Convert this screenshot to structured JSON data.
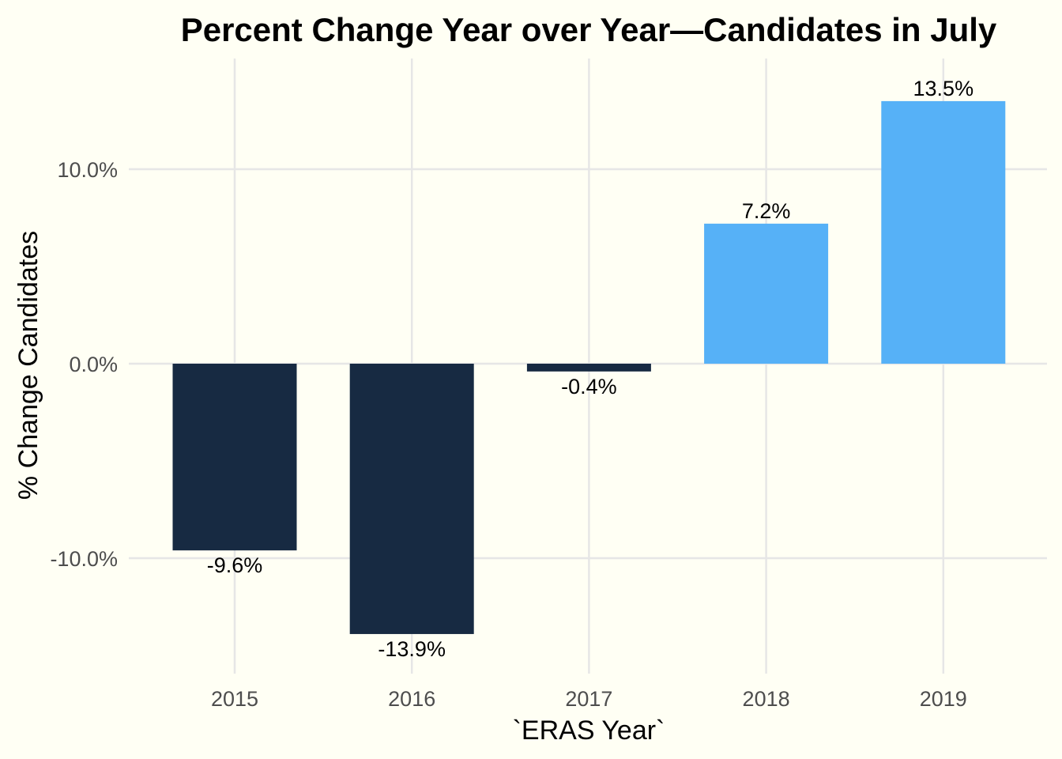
{
  "chart_data": {
    "type": "bar",
    "title": "Percent Change Year over Year—Candidates in July",
    "xlabel": "`ERAS Year`",
    "ylabel": "% Change Candidates",
    "categories": [
      "2015",
      "2016",
      "2017",
      "2018",
      "2019"
    ],
    "values": [
      -9.6,
      -13.9,
      -0.4,
      7.2,
      13.5
    ],
    "data_labels": [
      "-9.6%",
      "-13.9%",
      "-0.4%",
      "7.2%",
      "13.5%"
    ],
    "ylim": [
      -15.6,
      15.8
    ],
    "y_ticks": [
      {
        "value": -10,
        "label": "-10.0%"
      },
      {
        "value": 0,
        "label": "0.0%"
      },
      {
        "value": 10,
        "label": "10.0%"
      }
    ],
    "grid": true,
    "legend": "none",
    "colors": {
      "negative": "#172A42",
      "positive": "#56B1F7",
      "grid": "#E6E6E6",
      "background": "#FFFFF4"
    }
  }
}
